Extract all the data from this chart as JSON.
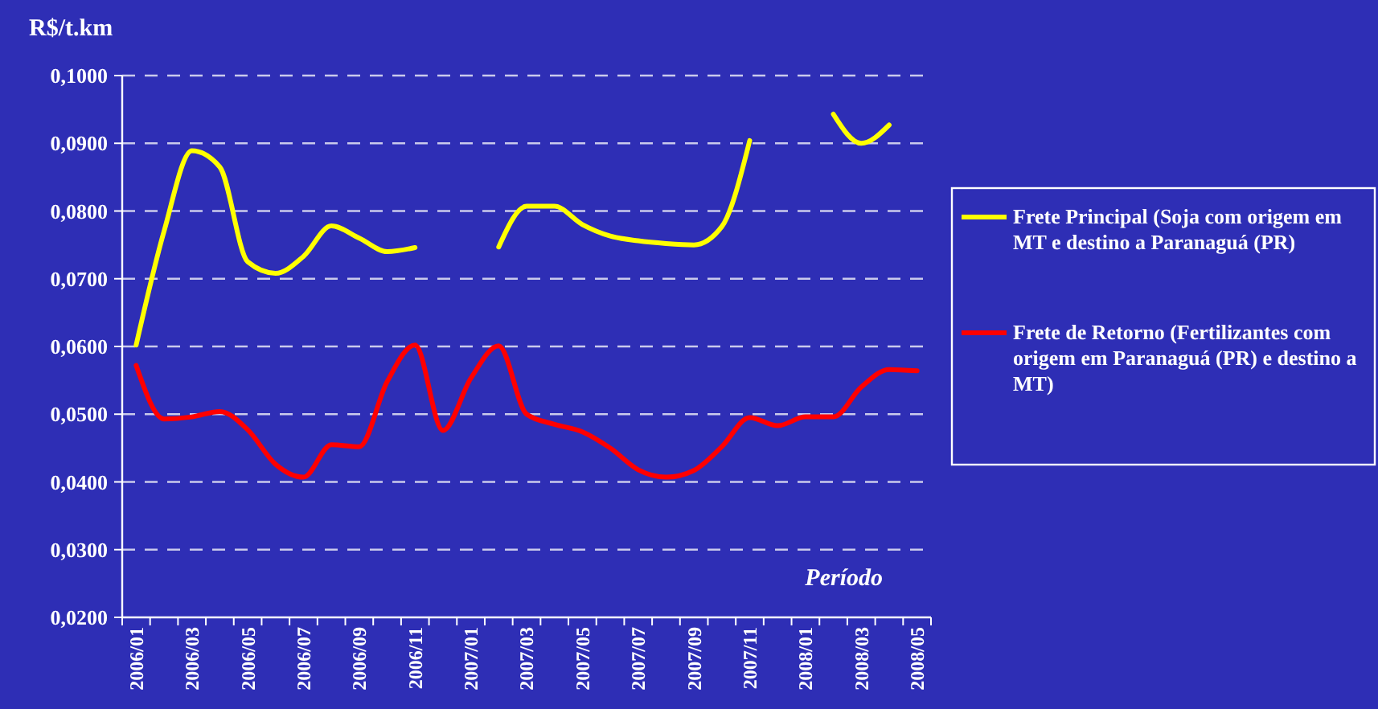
{
  "chart_data": {
    "type": "line",
    "ylabel": "R$/t.km",
    "annotations": [
      "Período"
    ],
    "categories": [
      "2006/01",
      null,
      "2006/03",
      null,
      "2006/05",
      null,
      "2006/07",
      null,
      "2006/09",
      null,
      "2006/11",
      null,
      "2007/01",
      null,
      "2007/03",
      null,
      "2007/05",
      null,
      "2007/07",
      null,
      "2007/09",
      null,
      "2007/11",
      null,
      "2008/01",
      null,
      "2008/03",
      null,
      "2008/05"
    ],
    "ylim": [
      0.02,
      0.1
    ],
    "yticks": [
      {
        "value": 0.02,
        "label": "0,0200"
      },
      {
        "value": 0.03,
        "label": "0,0300"
      },
      {
        "value": 0.04,
        "label": "0,0400"
      },
      {
        "value": 0.05,
        "label": "0,0500"
      },
      {
        "value": 0.06,
        "label": "0,0600"
      },
      {
        "value": 0.07,
        "label": "0,0700"
      },
      {
        "value": 0.08,
        "label": "0,0800"
      },
      {
        "value": 0.09,
        "label": "0,0900"
      },
      {
        "value": 0.1,
        "label": "0,1000"
      }
    ],
    "grid": "y",
    "legend": "right",
    "marker": "none",
    "line_style": "solid",
    "series": [
      {
        "name": "Frete Principal (Soja com origem em MT e destino a Paranaguá (PR)",
        "color": "#ffff00",
        "values": [
          0.0602,
          0.077,
          0.0889,
          0.0865,
          0.0725,
          0.0708,
          0.0733,
          0.0778,
          0.076,
          0.074,
          0.0746,
          null,
          null,
          0.0747,
          0.0807,
          0.0807,
          0.078,
          0.0763,
          0.0756,
          0.0752,
          0.075,
          0.0777,
          0.0904,
          null,
          null,
          0.0943,
          0.09,
          0.0927,
          null
        ]
      },
      {
        "name": "Frete de Retorno (Fertilizantes com origem em Paranaguá (PR) e destino a MT)",
        "color": "#ff0000",
        "values": [
          0.0572,
          0.0493,
          0.0496,
          0.0504,
          0.0477,
          0.0426,
          0.0407,
          0.0455,
          0.0452,
          0.0548,
          0.0602,
          0.0476,
          0.0553,
          0.0601,
          0.05,
          0.0485,
          0.0474,
          0.045,
          0.0418,
          0.0407,
          0.0417,
          0.0452,
          0.0495,
          0.0483,
          0.0496,
          0.0496,
          0.054,
          0.0566,
          0.0564
        ]
      }
    ]
  }
}
